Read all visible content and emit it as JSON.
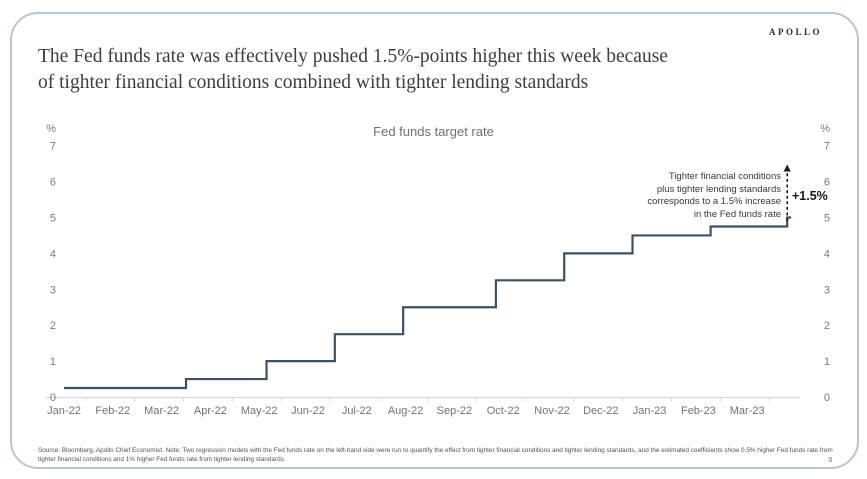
{
  "page": {
    "logo": "APOLLO",
    "title_line1": "The Fed funds rate was effectively pushed 1.5%-points higher this week because",
    "title_line2": "of tighter financial conditions combined with tighter lending standards",
    "footnote": "Source: Bloomberg, Apollo Chief Economist. Note: Two regression models with the Fed funds rate on the left-hand side were run to quantify the effect from tighter financial conditions and tighter lending standards, and the estimated coefficients show 0.5% higher Fed funds rate from tighter financial conditions and 1% higher Fed funds rate from tighter lending standards.",
    "page_number": "3"
  },
  "chart_data": {
    "type": "line",
    "style": "step",
    "title": "Fed funds target rate",
    "unit_label": "%",
    "x_tick_labels": [
      "Jan-22",
      "Feb-22",
      "Mar-22",
      "Apr-22",
      "May-22",
      "Jun-22",
      "Jul-22",
      "Aug-22",
      "Sep-22",
      "Oct-22",
      "Nov-22",
      "Dec-22",
      "Jan-23",
      "Feb-23",
      "Mar-23"
    ],
    "y_ticks": [
      0,
      1,
      2,
      3,
      4,
      5,
      6,
      7
    ],
    "ylim": [
      0,
      7
    ],
    "xlim_months": [
      0,
      15
    ],
    "grid": false,
    "legend": "none",
    "series": [
      {
        "name": "Fed funds target rate",
        "steps": [
          {
            "month_index": 0.0,
            "rate": 0.25
          },
          {
            "month_index": 2.5,
            "rate": 0.5
          },
          {
            "month_index": 4.15,
            "rate": 1.0
          },
          {
            "month_index": 5.55,
            "rate": 1.75
          },
          {
            "month_index": 6.95,
            "rate": 2.5
          },
          {
            "month_index": 8.85,
            "rate": 3.25
          },
          {
            "month_index": 10.25,
            "rate": 4.0
          },
          {
            "month_index": 11.65,
            "rate": 4.5
          },
          {
            "month_index": 13.25,
            "rate": 4.75
          },
          {
            "month_index": 14.82,
            "rate": 5.0
          }
        ],
        "end_month": 14.9
      }
    ],
    "annotation": {
      "lines": [
        "Tighter financial conditions",
        "plus tighter lending standards",
        "corresponds to a 1.5% increase",
        "in the Fed funds rate"
      ],
      "arrow_label": "+1.5%",
      "arrow_month": 14.82,
      "arrow_from_rate": 4.9,
      "arrow_to_rate": 6.45
    },
    "colors": {
      "line": "#3d5163",
      "axis": "#d8d8d8",
      "tick_label": "#7a7a7a",
      "x_label": "#737373",
      "arrow": "#1c1c1c"
    }
  }
}
